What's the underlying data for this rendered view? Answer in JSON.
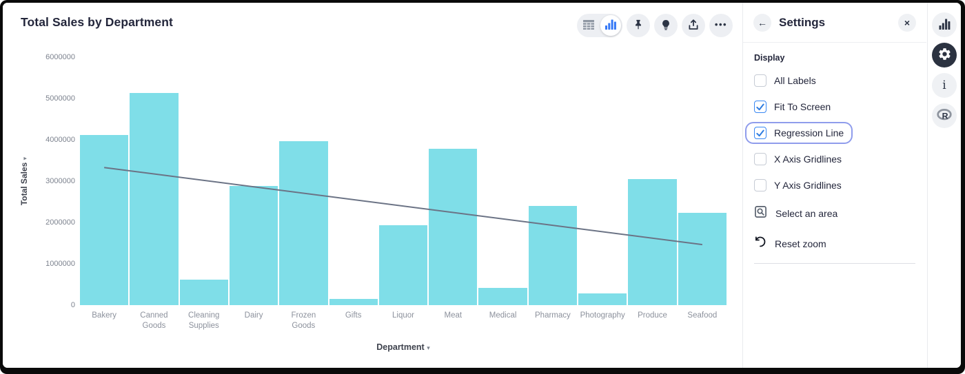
{
  "header": {
    "title": "Total Sales by Department"
  },
  "toolbar": {
    "view_toggle": {
      "options": [
        "table-view",
        "chart-view"
      ],
      "selected": "chart-view"
    },
    "buttons": [
      "pin",
      "insights",
      "share",
      "more"
    ]
  },
  "icons": {
    "more": "•••",
    "back": "←",
    "close": "×",
    "caret_down": "▾",
    "info": "i",
    "r_logo": "R"
  },
  "chart_data": {
    "type": "bar",
    "title": "Total Sales by Department",
    "xlabel": "Department",
    "ylabel": "Total Sales",
    "categories": [
      "Bakery",
      "Canned Goods",
      "Cleaning Supplies",
      "Dairy",
      "Frozen Goods",
      "Gifts",
      "Liquor",
      "Meat",
      "Medical",
      "Pharmacy",
      "Photography",
      "Produce",
      "Seafood"
    ],
    "values": [
      4115000,
      5130000,
      610000,
      2880000,
      3975000,
      150000,
      1935000,
      3790000,
      425000,
      2405000,
      285000,
      3050000,
      2235000
    ],
    "ylim": [
      0,
      6000000
    ],
    "y_ticks": [
      0,
      1000000,
      2000000,
      3000000,
      4000000,
      5000000,
      6000000
    ],
    "y_tick_labels": [
      "0",
      "1000000",
      "2000000",
      "3000000",
      "4000000",
      "5000000",
      "6000000"
    ],
    "bar_color": "#7FDEE8",
    "gridlines": {
      "x": false,
      "y": false
    },
    "regression_line": {
      "show": true,
      "color": "#6B7385",
      "start_value": 3330000,
      "end_value": 1465000
    }
  },
  "settings_panel": {
    "title": "Settings",
    "section": "Display",
    "checkboxes": [
      {
        "label": "All Labels",
        "checked": false,
        "highlighted": false
      },
      {
        "label": "Fit To Screen",
        "checked": true,
        "highlighted": false
      },
      {
        "label": "Regression Line",
        "checked": true,
        "highlighted": true
      },
      {
        "label": "X Axis Gridlines",
        "checked": false,
        "highlighted": false
      },
      {
        "label": "Y Axis Gridlines",
        "checked": false,
        "highlighted": false
      }
    ],
    "actions": [
      {
        "label": "Select an area",
        "icon": "area-select-icon"
      },
      {
        "label": "Reset zoom",
        "icon": "reset-zoom-icon"
      }
    ]
  },
  "sidebar": {
    "items": [
      {
        "name": "chart",
        "active": false
      },
      {
        "name": "settings",
        "active": true
      },
      {
        "name": "info",
        "active": false
      },
      {
        "name": "r-logo",
        "active": false
      }
    ]
  },
  "colors": {
    "bar": "#7FDEE8",
    "regression": "#6B7385",
    "accent_blue": "#3787F3",
    "focus_ring": "#8F9CEC",
    "title_text": "#23263B",
    "axis_text": "#8C919C",
    "active_rail": "#2B3240"
  }
}
